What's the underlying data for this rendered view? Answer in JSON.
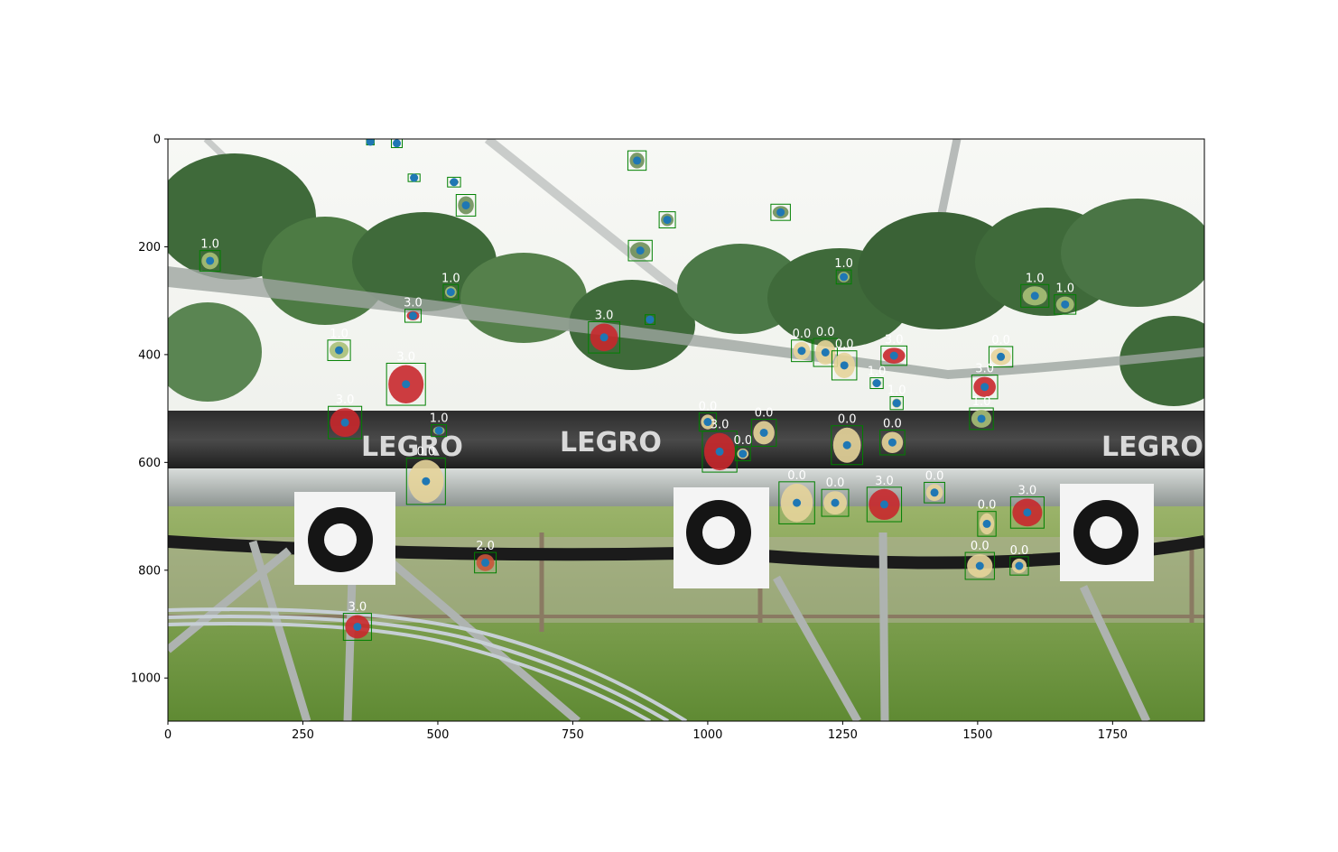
{
  "plot": {
    "image_width": 1920,
    "image_height": 1080,
    "x_ticks": [
      0,
      250,
      500,
      750,
      1000,
      1250,
      1500,
      1750
    ],
    "y_ticks": [
      0,
      200,
      400,
      600,
      800,
      1000
    ],
    "x_tick_labels": [
      "0",
      "250",
      "500",
      "750",
      "1000",
      "1250",
      "1500",
      "1750"
    ],
    "y_tick_labels": [
      "0",
      "200",
      "400",
      "600",
      "800",
      "1000"
    ]
  },
  "colors": {
    "box": "#008000",
    "point": "#1f77b4",
    "label_text": "#ffffff",
    "ripe": "#c8282c",
    "unripe": "#e6d49a",
    "dark": "#5c1414"
  },
  "scene": {
    "signs": [
      "LEGRO",
      "LEGRO",
      "LEGRO"
    ]
  },
  "detections": [
    {
      "x": 375,
      "y": 5,
      "w": 14,
      "h": 12,
      "label": ""
    },
    {
      "x": 424,
      "y": 8,
      "w": 20,
      "h": 16,
      "label": ""
    },
    {
      "x": 456,
      "y": 72,
      "w": 22,
      "h": 14,
      "label": ""
    },
    {
      "x": 530,
      "y": 80,
      "w": 24,
      "h": 18,
      "label": ""
    },
    {
      "x": 552,
      "y": 123,
      "w": 36,
      "h": 40,
      "label": ""
    },
    {
      "x": 869,
      "y": 40,
      "w": 34,
      "h": 36,
      "label": ""
    },
    {
      "x": 925,
      "y": 150,
      "w": 30,
      "h": 30,
      "label": ""
    },
    {
      "x": 1135,
      "y": 136,
      "w": 36,
      "h": 30,
      "label": ""
    },
    {
      "x": 875,
      "y": 207,
      "w": 44,
      "h": 38,
      "label": ""
    },
    {
      "x": 893,
      "y": 335,
      "w": 18,
      "h": 18,
      "label": ""
    },
    {
      "x": 78,
      "y": 226,
      "w": 38,
      "h": 38,
      "label": "1.0"
    },
    {
      "x": 454,
      "y": 328,
      "w": 30,
      "h": 24,
      "label": "3.0"
    },
    {
      "x": 524,
      "y": 284,
      "w": 28,
      "h": 28,
      "label": "1.0"
    },
    {
      "x": 317,
      "y": 392,
      "w": 42,
      "h": 38,
      "label": "1.0"
    },
    {
      "x": 441,
      "y": 455,
      "w": 72,
      "h": 78,
      "label": "3.0"
    },
    {
      "x": 328,
      "y": 526,
      "w": 62,
      "h": 60,
      "label": "3.0"
    },
    {
      "x": 502,
      "y": 541,
      "w": 28,
      "h": 22,
      "label": "1.0"
    },
    {
      "x": 478,
      "y": 635,
      "w": 72,
      "h": 86,
      "label": "0.0"
    },
    {
      "x": 588,
      "y": 786,
      "w": 40,
      "h": 38,
      "label": "2.0"
    },
    {
      "x": 351,
      "y": 905,
      "w": 52,
      "h": 50,
      "label": "3.0"
    },
    {
      "x": 808,
      "y": 368,
      "w": 58,
      "h": 58,
      "label": "3.0"
    },
    {
      "x": 1000,
      "y": 525,
      "w": 32,
      "h": 34,
      "label": "0.0"
    },
    {
      "x": 1022,
      "y": 580,
      "w": 64,
      "h": 76,
      "label": "3.0"
    },
    {
      "x": 1065,
      "y": 584,
      "w": 28,
      "h": 26,
      "label": "0.0"
    },
    {
      "x": 1104,
      "y": 545,
      "w": 46,
      "h": 50,
      "label": "0.0"
    },
    {
      "x": 1165,
      "y": 675,
      "w": 66,
      "h": 78,
      "label": "0.0"
    },
    {
      "x": 1174,
      "y": 393,
      "w": 38,
      "h": 40,
      "label": "0.0"
    },
    {
      "x": 1218,
      "y": 396,
      "w": 44,
      "h": 52,
      "label": "0.0"
    },
    {
      "x": 1253,
      "y": 420,
      "w": 46,
      "h": 54,
      "label": "0.0"
    },
    {
      "x": 1252,
      "y": 256,
      "w": 28,
      "h": 26,
      "label": "1.0"
    },
    {
      "x": 1258,
      "y": 568,
      "w": 58,
      "h": 72,
      "label": "0.0"
    },
    {
      "x": 1236,
      "y": 675,
      "w": 50,
      "h": 50,
      "label": "0.0"
    },
    {
      "x": 1327,
      "y": 678,
      "w": 64,
      "h": 64,
      "label": "3.0"
    },
    {
      "x": 1342,
      "y": 563,
      "w": 46,
      "h": 46,
      "label": "0.0"
    },
    {
      "x": 1345,
      "y": 402,
      "w": 48,
      "h": 36,
      "label": "3.0"
    },
    {
      "x": 1313,
      "y": 453,
      "w": 24,
      "h": 20,
      "label": "1.0"
    },
    {
      "x": 1350,
      "y": 490,
      "w": 24,
      "h": 24,
      "label": "1.0"
    },
    {
      "x": 1420,
      "y": 656,
      "w": 38,
      "h": 38,
      "label": "0.0"
    },
    {
      "x": 1543,
      "y": 404,
      "w": 44,
      "h": 38,
      "label": "0.0"
    },
    {
      "x": 1513,
      "y": 460,
      "w": 48,
      "h": 44,
      "label": "3.0"
    },
    {
      "x": 1507,
      "y": 519,
      "w": 44,
      "h": 40,
      "label": "1.0"
    },
    {
      "x": 1517,
      "y": 714,
      "w": 34,
      "h": 46,
      "label": "0.0"
    },
    {
      "x": 1592,
      "y": 693,
      "w": 62,
      "h": 58,
      "label": "3.0"
    },
    {
      "x": 1504,
      "y": 792,
      "w": 54,
      "h": 50,
      "label": "0.0"
    },
    {
      "x": 1577,
      "y": 792,
      "w": 34,
      "h": 34,
      "label": "0.0"
    },
    {
      "x": 1606,
      "y": 291,
      "w": 52,
      "h": 42,
      "label": "1.0"
    },
    {
      "x": 1662,
      "y": 307,
      "w": 40,
      "h": 36,
      "label": "1.0"
    }
  ]
}
